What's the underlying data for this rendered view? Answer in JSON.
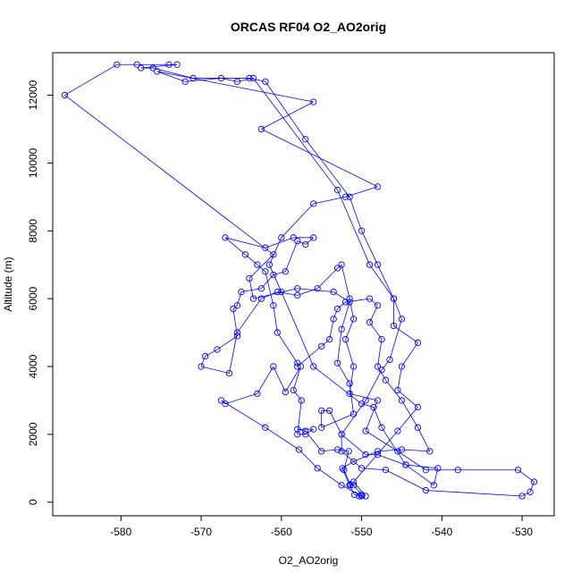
{
  "chart_data": {
    "type": "scatter",
    "title": "ORCAS RF04 O2_AO2orig",
    "xlabel": "O2_AO2orig",
    "ylabel": "Altitude (m)",
    "xlim": [
      -588.5,
      -526.0
    ],
    "ylim": [
      -400,
      13250
    ],
    "x_ticks": [
      -580,
      -570,
      -560,
      -550,
      -540,
      -530
    ],
    "y_ticks": [
      0,
      2000,
      4000,
      6000,
      8000,
      10000,
      12000
    ],
    "x_tick_labels": [
      "-580",
      "-570",
      "-560",
      "-550",
      "-540",
      "-530"
    ],
    "y_tick_labels": [
      "0",
      "2000",
      "4000",
      "6000",
      "8000",
      "10000",
      "12000"
    ],
    "series_color": "#0000ff",
    "marker": "open-circle",
    "connected": true,
    "points": [
      [
        -550.3,
        180
      ],
      [
        -550.0,
        220
      ],
      [
        -551.0,
        500
      ],
      [
        -551.4,
        520
      ],
      [
        -552.2,
        950
      ],
      [
        -551.6,
        1500
      ],
      [
        -553.0,
        1550
      ],
      [
        -555.0,
        1500
      ],
      [
        -557.0,
        2100
      ],
      [
        -558.0,
        2150
      ],
      [
        -556.0,
        2150
      ],
      [
        -557.0,
        2000
      ],
      [
        -558.0,
        2000
      ],
      [
        -557.5,
        3000
      ],
      [
        -558.5,
        3300
      ],
      [
        -557.6,
        4000
      ],
      [
        -559.5,
        3250
      ],
      [
        -561.0,
        4000
      ],
      [
        -563.0,
        3200
      ],
      [
        -567.0,
        2900
      ],
      [
        -567.5,
        3000
      ],
      [
        -562.0,
        2200
      ],
      [
        -557.8,
        1550
      ],
      [
        -555.5,
        1000
      ],
      [
        -552.5,
        500
      ],
      [
        -550.0,
        180
      ],
      [
        -550.9,
        220
      ],
      [
        -551.5,
        500
      ],
      [
        -552.4,
        1000
      ],
      [
        -551.0,
        1200
      ],
      [
        -548.0,
        1500
      ],
      [
        -545.0,
        1550
      ],
      [
        -541.5,
        1500
      ],
      [
        -543.0,
        2200
      ],
      [
        -545.0,
        3000
      ],
      [
        -547.0,
        3600
      ],
      [
        -548.0,
        4000
      ],
      [
        -547.5,
        4800
      ],
      [
        -549.0,
        5300
      ],
      [
        -548.0,
        5800
      ],
      [
        -549.0,
        6000
      ],
      [
        -552.0,
        5900
      ],
      [
        -553.0,
        5700
      ],
      [
        -553.5,
        5400
      ],
      [
        -554.0,
        4800
      ],
      [
        -555.0,
        4600
      ],
      [
        -558.0,
        4000
      ],
      [
        -558.0,
        4100
      ],
      [
        -560.5,
        5000
      ],
      [
        -561.0,
        5800
      ],
      [
        -562.0,
        6800
      ],
      [
        -563.0,
        7000
      ],
      [
        -564.5,
        7300
      ],
      [
        -567.0,
        7800
      ],
      [
        -562.0,
        7500
      ],
      [
        -558.5,
        7800
      ],
      [
        -556.0,
        7800
      ],
      [
        -557.0,
        7600
      ],
      [
        -558.0,
        7700
      ],
      [
        -559.5,
        6800
      ],
      [
        -561.0,
        6700
      ],
      [
        -562.5,
        6300
      ],
      [
        -565.0,
        6200
      ],
      [
        -565.5,
        5800
      ],
      [
        -566.0,
        5700
      ],
      [
        -565.5,
        4900
      ],
      [
        -568.0,
        4500
      ],
      [
        -569.5,
        4300
      ],
      [
        -570.0,
        4000
      ],
      [
        -566.5,
        3800
      ],
      [
        -565.5,
        5000
      ],
      [
        -562.5,
        6000
      ],
      [
        -560.5,
        6200
      ],
      [
        -558.0,
        6100
      ],
      [
        -555.5,
        6300
      ],
      [
        -553.0,
        6900
      ],
      [
        -552.5,
        7000
      ],
      [
        -551.5,
        6000
      ],
      [
        -551.0,
        5400
      ],
      [
        -552.0,
        4800
      ],
      [
        -551.0,
        4000
      ],
      [
        -551.5,
        3200
      ],
      [
        -548.0,
        3000
      ],
      [
        -549.5,
        2100
      ],
      [
        -545.5,
        1500
      ],
      [
        -542.0,
        950
      ],
      [
        -538.0,
        950
      ],
      [
        -530.5,
        950
      ],
      [
        -528.5,
        600
      ],
      [
        -529.0,
        300
      ],
      [
        -530.0,
        180
      ],
      [
        -542.0,
        350
      ],
      [
        -547.0,
        950
      ],
      [
        -550.0,
        1000
      ],
      [
        -552.5,
        1500
      ],
      [
        -552.5,
        2000
      ],
      [
        -549.5,
        3000
      ],
      [
        -547.5,
        3900
      ],
      [
        -546.5,
        4200
      ],
      [
        -545.0,
        5400
      ],
      [
        -546.0,
        6000
      ],
      [
        -548.0,
        7000
      ],
      [
        -550.0,
        8000
      ],
      [
        -551.5,
        9000
      ],
      [
        -557.0,
        10700
      ],
      [
        -562.0,
        12400
      ],
      [
        -564.0,
        12500
      ],
      [
        -571.0,
        12500
      ],
      [
        -576.0,
        12800
      ],
      [
        -577.5,
        12800
      ],
      [
        -573.0,
        12900
      ],
      [
        -574.0,
        12900
      ],
      [
        -578.0,
        12900
      ],
      [
        -580.5,
        12900
      ],
      [
        -587.0,
        12000
      ],
      [
        -561.0,
        7300
      ],
      [
        -564.0,
        6600
      ],
      [
        -563.5,
        6000
      ],
      [
        -558.0,
        6300
      ],
      [
        -553.5,
        6200
      ],
      [
        -551.5,
        5900
      ],
      [
        -552.5,
        5100
      ],
      [
        -553.0,
        4100
      ],
      [
        -551.5,
        3500
      ],
      [
        -551.0,
        2600
      ],
      [
        -555.0,
        2200
      ],
      [
        -555.0,
        2700
      ],
      [
        -554.0,
        2700
      ],
      [
        -552.5,
        2000
      ],
      [
        -549.5,
        1400
      ],
      [
        -548.0,
        1400
      ],
      [
        -544.5,
        1100
      ],
      [
        -540.5,
        1000
      ],
      [
        -541.0,
        500
      ],
      [
        -544.5,
        1100
      ],
      [
        -547.5,
        2200
      ],
      [
        -548.5,
        2800
      ],
      [
        -550.0,
        2900
      ],
      [
        -556.0,
        4000
      ],
      [
        -560.0,
        6200
      ],
      [
        -561.5,
        7000
      ],
      [
        -560.0,
        7800
      ],
      [
        -556.0,
        8800
      ],
      [
        -552.0,
        9000
      ],
      [
        -548.0,
        9300
      ],
      [
        -562.5,
        11000
      ],
      [
        -556.0,
        11800
      ],
      [
        -575.5,
        12700
      ],
      [
        -572.0,
        12400
      ],
      [
        -567.5,
        12500
      ],
      [
        -565.5,
        12400
      ],
      [
        -563.5,
        12500
      ],
      [
        -553.0,
        9200
      ],
      [
        -549.0,
        7000
      ],
      [
        -546.0,
        6000
      ],
      [
        -546.0,
        5200
      ],
      [
        -543.0,
        4700
      ],
      [
        -545.0,
        4000
      ],
      [
        -545.5,
        3300
      ],
      [
        -543.0,
        2800
      ],
      [
        -545.5,
        2100
      ],
      [
        -551.0,
        600
      ],
      [
        -549.5,
        180
      ]
    ]
  }
}
